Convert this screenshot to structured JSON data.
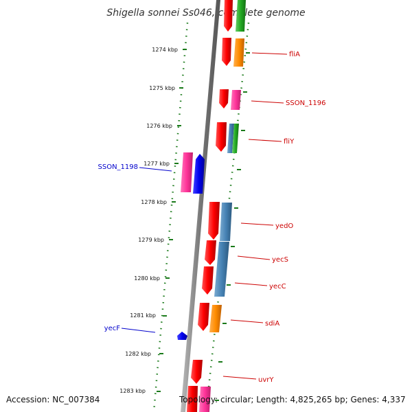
{
  "title": "Shigella sonnei Ss046, complete genome",
  "footer": {
    "accession": "Accession: NC_007384",
    "topology": "Topology: circular; Length: 4,825,265 bp; Genes: 4,337"
  },
  "colors": {
    "backbone": "#888888",
    "tick": "#1a7a1a",
    "label_right": "#cc0000",
    "label_left": "#0000cc",
    "red": "#ff0000",
    "orange": "#ff8c00",
    "green": "#22aa22",
    "steelblue": "#4682b4",
    "pink": "#ff3399",
    "blue": "#0000ee"
  },
  "ticks": [
    "1274 kbp",
    "1275 kbp",
    "1276 kbp",
    "1277 kbp",
    "1278 kbp",
    "1279 kbp",
    "1280 kbp",
    "1281 kbp",
    "1282 kbp",
    "1283 kbp"
  ],
  "gene_labels": [
    {
      "text": "fliA",
      "side": "right"
    },
    {
      "text": "SSON_1196",
      "side": "right"
    },
    {
      "text": "fliY",
      "side": "right"
    },
    {
      "text": "SSON_1198",
      "side": "left"
    },
    {
      "text": "yedO",
      "side": "right"
    },
    {
      "text": "yecS",
      "side": "right"
    },
    {
      "text": "yecC",
      "side": "right"
    },
    {
      "text": "sdiA",
      "side": "right"
    },
    {
      "text": "yecF",
      "side": "left"
    },
    {
      "text": "uvrY",
      "side": "right"
    }
  ]
}
